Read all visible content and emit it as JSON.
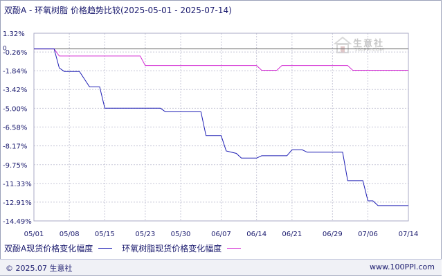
{
  "title": "双酚A - 环氧树脂 价格趋势比较(2025-05-01 - 2025-07-14)",
  "footer": {
    "copyright": "© 2025.07 生意社",
    "url": "www.100PPI.com"
  },
  "watermark": {
    "name": "生意社",
    "url": "100PPI.COM"
  },
  "colors": {
    "series1": "#1c1cb4",
    "series2": "#d42ed4",
    "grid": "#c8c8d8",
    "zero": "#666666",
    "text": "#1a1a6e"
  },
  "chart_data": {
    "type": "line",
    "title": "双酚A - 环氧树脂 价格趋势比较(2025-05-01 - 2025-07-14)",
    "xlabel": "",
    "ylabel": "",
    "ylim": [
      -14.49,
      1.32
    ],
    "yticks": [
      "1.32%",
      "-0.26%",
      "-1.84%",
      "-3.42%",
      "-5.00%",
      "-6.58%",
      "-8.17%",
      "-9.75%",
      "-11.33%",
      "-12.91%",
      "-14.49%"
    ],
    "ytick_values": [
      1.32,
      -0.26,
      -1.84,
      -3.42,
      -5.0,
      -6.58,
      -8.17,
      -9.75,
      -11.33,
      -12.91,
      -14.49
    ],
    "zero_label": "0",
    "xlim": [
      "2025-05-01",
      "2025-07-14"
    ],
    "xticks": [
      "05/01",
      "05/08",
      "05/15",
      "05/23",
      "05/30",
      "06/07",
      "06/14",
      "06/21",
      "06/29",
      "07/06",
      "07/14"
    ],
    "xtick_dates": [
      "2025-05-01",
      "2025-05-08",
      "2025-05-15",
      "2025-05-23",
      "2025-05-30",
      "2025-06-07",
      "2025-06-14",
      "2025-06-21",
      "2025-06-29",
      "2025-07-06",
      "2025-07-14"
    ],
    "grid": true,
    "legend_position": "bottom-left",
    "series": [
      {
        "name": "双酚A现货价格变化幅度",
        "points": [
          [
            "2025-05-01",
            0.0
          ],
          [
            "2025-05-05",
            0.0
          ],
          [
            "2025-05-06",
            -1.6
          ],
          [
            "2025-05-07",
            -1.9
          ],
          [
            "2025-05-09",
            -1.9
          ],
          [
            "2025-05-10",
            -1.9
          ],
          [
            "2025-05-12",
            -3.2
          ],
          [
            "2025-05-13",
            -3.2
          ],
          [
            "2025-05-14",
            -3.2
          ],
          [
            "2025-05-15",
            -5.0
          ],
          [
            "2025-05-16",
            -5.0
          ],
          [
            "2025-05-23",
            -5.0
          ],
          [
            "2025-05-26",
            -5.0
          ],
          [
            "2025-05-27",
            -5.3
          ],
          [
            "2025-05-30",
            -5.3
          ],
          [
            "2025-06-03",
            -5.3
          ],
          [
            "2025-06-04",
            -7.3
          ],
          [
            "2025-06-06",
            -7.3
          ],
          [
            "2025-06-07",
            -7.3
          ],
          [
            "2025-06-08",
            -8.6
          ],
          [
            "2025-06-10",
            -8.8
          ],
          [
            "2025-06-11",
            -9.2
          ],
          [
            "2025-06-13",
            -9.2
          ],
          [
            "2025-06-14",
            -9.2
          ],
          [
            "2025-06-15",
            -9.0
          ],
          [
            "2025-06-19",
            -9.0
          ],
          [
            "2025-06-20",
            -9.0
          ],
          [
            "2025-06-21",
            -8.5
          ],
          [
            "2025-06-23",
            -8.5
          ],
          [
            "2025-06-24",
            -8.7
          ],
          [
            "2025-06-29",
            -8.7
          ],
          [
            "2025-07-01",
            -8.7
          ],
          [
            "2025-07-02",
            -11.1
          ],
          [
            "2025-07-04",
            -11.1
          ],
          [
            "2025-07-05",
            -11.1
          ],
          [
            "2025-07-06",
            -12.8
          ],
          [
            "2025-07-07",
            -12.8
          ],
          [
            "2025-07-08",
            -13.2
          ],
          [
            "2025-07-14",
            -13.2
          ]
        ]
      },
      {
        "name": "环氧树脂现货价格变化幅度",
        "points": [
          [
            "2025-05-01",
            0.0
          ],
          [
            "2025-05-05",
            0.0
          ],
          [
            "2025-05-06",
            -0.6
          ],
          [
            "2025-05-22",
            -0.6
          ],
          [
            "2025-05-23",
            -1.4
          ],
          [
            "2025-06-14",
            -1.4
          ],
          [
            "2025-06-15",
            -1.8
          ],
          [
            "2025-06-18",
            -1.8
          ],
          [
            "2025-06-19",
            -1.4
          ],
          [
            "2025-07-02",
            -1.4
          ],
          [
            "2025-07-03",
            -1.8
          ],
          [
            "2025-07-14",
            -1.8
          ]
        ]
      }
    ]
  }
}
